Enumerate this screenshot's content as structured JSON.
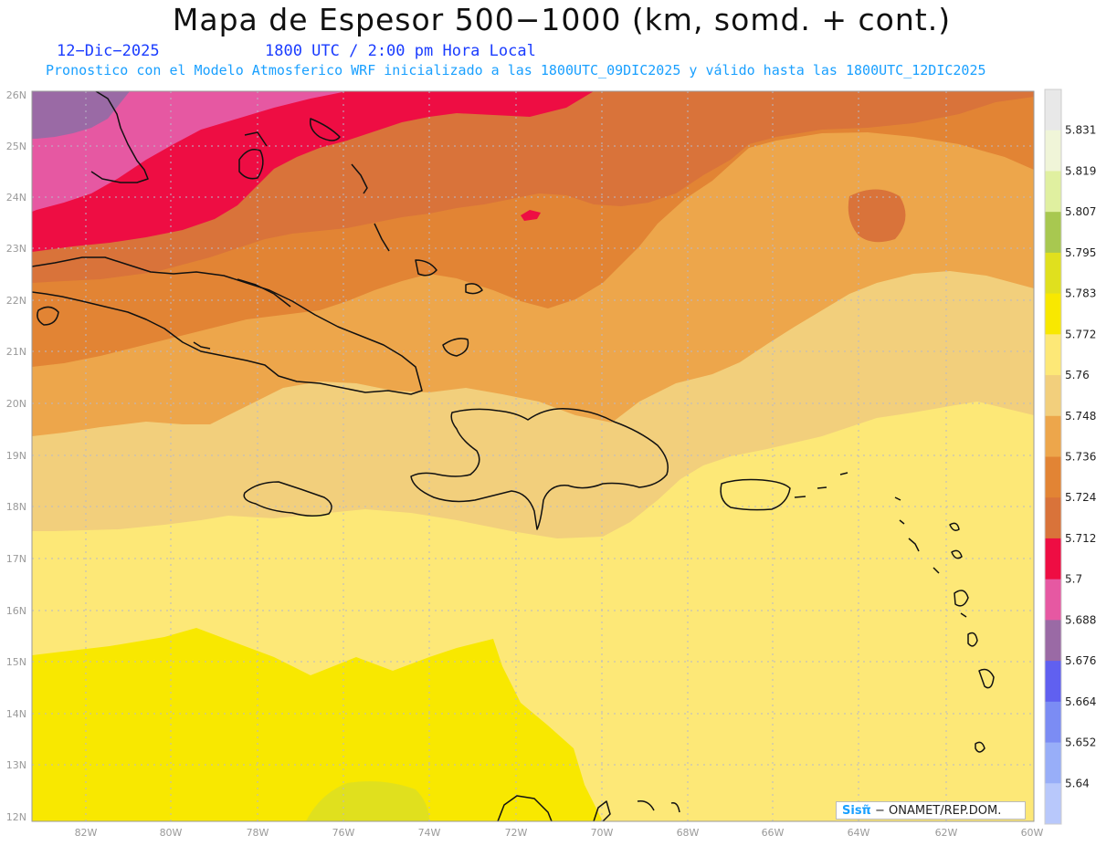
{
  "header": {
    "title": "Mapa de Espesor 500−1000 (km, somd. + cont.)",
    "date": "12−Dic−2025",
    "time": "1800 UTC / 2:00 pm Hora Local",
    "forecast": "Pronostico con el Modelo Atmosferico WRF inicializado a las 1800UTC_09DIC2025 y válido hasta las  1800UTC_12DIC2025"
  },
  "axes": {
    "lat_labels": [
      "26N",
      "25N",
      "24N",
      "23N",
      "22N",
      "21N",
      "20N",
      "19N",
      "18N",
      "17N",
      "16N",
      "15N",
      "14N",
      "13N",
      "12N"
    ],
    "lon_labels": [
      "82W",
      "80W",
      "78W",
      "76W",
      "74W",
      "72W",
      "70W",
      "68W",
      "66W",
      "64W",
      "62W",
      "60W"
    ]
  },
  "colorbar": {
    "labels": [
      "5.831",
      "5.819",
      "5.807",
      "5.795",
      "5.783",
      "5.772",
      "5.76",
      "5.748",
      "5.736",
      "5.724",
      "5.712",
      "5.7",
      "5.688",
      "5.676",
      "5.664",
      "5.652",
      "5.64"
    ],
    "colors": [
      "#e8e8e8",
      "#f0f5d8",
      "#e0f0a0",
      "#a8c850",
      "#e0e01e",
      "#f8e800",
      "#fde877",
      "#f2cf7c",
      "#eda64b",
      "#e28434",
      "#d9733a",
      "#ee0d43",
      "#e658a2",
      "#9a6aa5",
      "#6060f0",
      "#7b8cf4",
      "#98aef8",
      "#b8c8fb"
    ],
    "unit_note": "km"
  },
  "credit": {
    "brand": "Sisπ̃",
    "org": " − ONAMET/REP.DOM."
  }
}
